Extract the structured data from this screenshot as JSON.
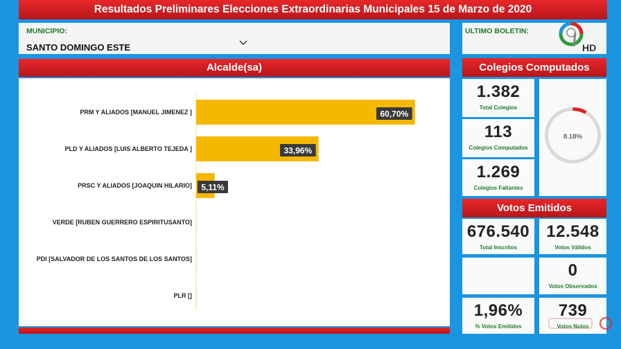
{
  "banner": {
    "title": "Resultados Preliminares Elecciones Extraordinarias Municipales 15 de Marzo de 2020"
  },
  "municipio": {
    "label": "MUNICIPIO:",
    "value": "SANTO DOMINGO ESTE",
    "chevron_icon": "chevron-down-icon"
  },
  "boletin": {
    "label": "ULTIMO BOLETIN:",
    "logo_icon": "channel-9-hd-logo"
  },
  "alcalde": {
    "header": "Alcalde(sa)"
  },
  "chart_data": {
    "type": "bar",
    "orientation": "horizontal",
    "categories": [
      "PRM Y ALIADOS [MANUEL JIMENEZ ]",
      "PLD Y ALIADOS [LUIS ALBERTO TEJEDA ]",
      "PRSC Y ALIADOS [JOAQUIN HILARIO]",
      "VERDE [RUBEN GUERRERO ESPIRITUSANTO]",
      "PDI [SALVADOR DE LOS SANTOS DE LOS SANTOS]",
      "PLR []"
    ],
    "values": [
      60.7,
      33.96,
      5.11,
      0,
      0,
      0
    ],
    "value_labels": [
      "60,70%",
      "33,96%",
      "5,11%",
      "",
      "",
      ""
    ],
    "bar_color": "#f5b800",
    "label_bg": "#3a3a3a"
  },
  "colegios": {
    "header": "Colegios Computados",
    "total": {
      "value": "1.382",
      "label": "Total Colegios"
    },
    "computados": {
      "value": "113",
      "label": "Colegios Computados"
    },
    "faltantes": {
      "value": "1.269",
      "label": "Colegios Faltantes"
    },
    "gauge": {
      "percent": 8.18,
      "label": "8.18%",
      "track_color": "#d9d9d9",
      "fill_color": "#e0201f"
    }
  },
  "votos": {
    "header": "Votos Emitidos",
    "inscritos": {
      "value": "676.540",
      "label": "Total Inscritos"
    },
    "validos": {
      "value": "12.548",
      "label": "Votos Válidos"
    },
    "observados": {
      "value": "0",
      "label": "Votos Observados"
    },
    "porcentaje": {
      "value": "1,96%",
      "label": "% Votos Emitidos"
    },
    "nulos": {
      "value": "739",
      "label": "Votos Nulos"
    }
  },
  "colors": {
    "background": "#1b95e0",
    "header_red": "#d81f23",
    "label_green": "#1d7a2e"
  }
}
